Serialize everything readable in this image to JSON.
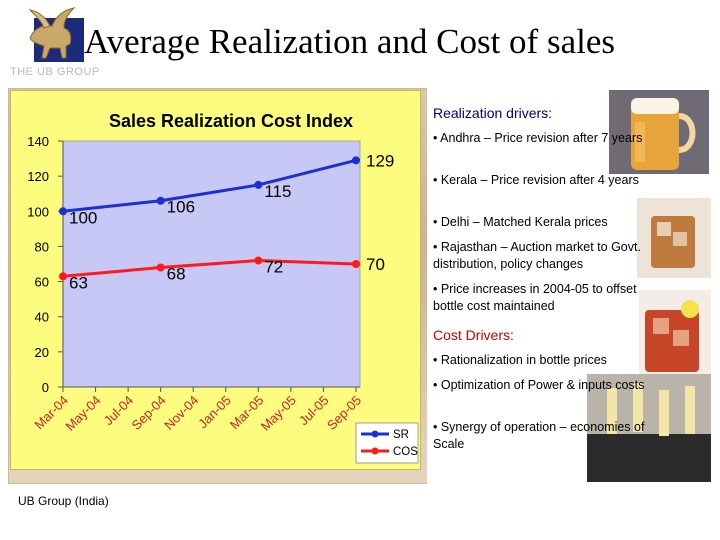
{
  "slide": {
    "title": "Average Realization and Cost of sales",
    "logo_text": "THE UB GROUP",
    "footer": "UB Group (India)"
  },
  "right_panel": {
    "realization_heading": "Realization drivers:",
    "realization_items": [
      "• Andhra – Price revision after 7 years",
      "• Kerala – Price revision after 4 years",
      "• Delhi – Matched Kerala prices",
      "• Rajasthan – Auction market to Govt. distribution, policy changes",
      "• Price increases in 2004-05 to offset bottle cost maintained"
    ],
    "cost_heading": "Cost Drivers:",
    "cost_items": [
      "•  Rationalization in bottle prices",
      "• Optimization of Power & inputs costs",
      "• Synergy of operation – economies of Scale"
    ]
  },
  "chart_data": {
    "type": "line",
    "title": "Sales Realization Cost Index",
    "categories": [
      "Mar-04",
      "May-04",
      "Jul-04",
      "Sep-04",
      "Nov-04",
      "Jan-05",
      "Mar-05",
      "May-05",
      "Jul-05",
      "Sep-05"
    ],
    "ylim": [
      0,
      140
    ],
    "yticks": [
      0,
      20,
      40,
      60,
      80,
      100,
      120,
      140
    ],
    "grid": false,
    "legend": "bottom-right",
    "series": [
      {
        "name": "SR",
        "color": "#1a2fd6",
        "points": [
          {
            "x": "Mar-04",
            "y": 100,
            "label": "100"
          },
          {
            "x": "Sep-04",
            "y": 106,
            "label": "106"
          },
          {
            "x": "Mar-05",
            "y": 115,
            "label": "115"
          },
          {
            "x": "Sep-05",
            "y": 129,
            "label": "129"
          }
        ]
      },
      {
        "name": "COS",
        "color": "#ff1a1a",
        "points": [
          {
            "x": "Mar-04",
            "y": 63,
            "label": "63"
          },
          {
            "x": "Sep-04",
            "y": 68,
            "label": "68"
          },
          {
            "x": "Mar-05",
            "y": 72,
            "label": "72"
          },
          {
            "x": "Sep-05",
            "y": 70,
            "label": "70"
          }
        ]
      }
    ]
  }
}
